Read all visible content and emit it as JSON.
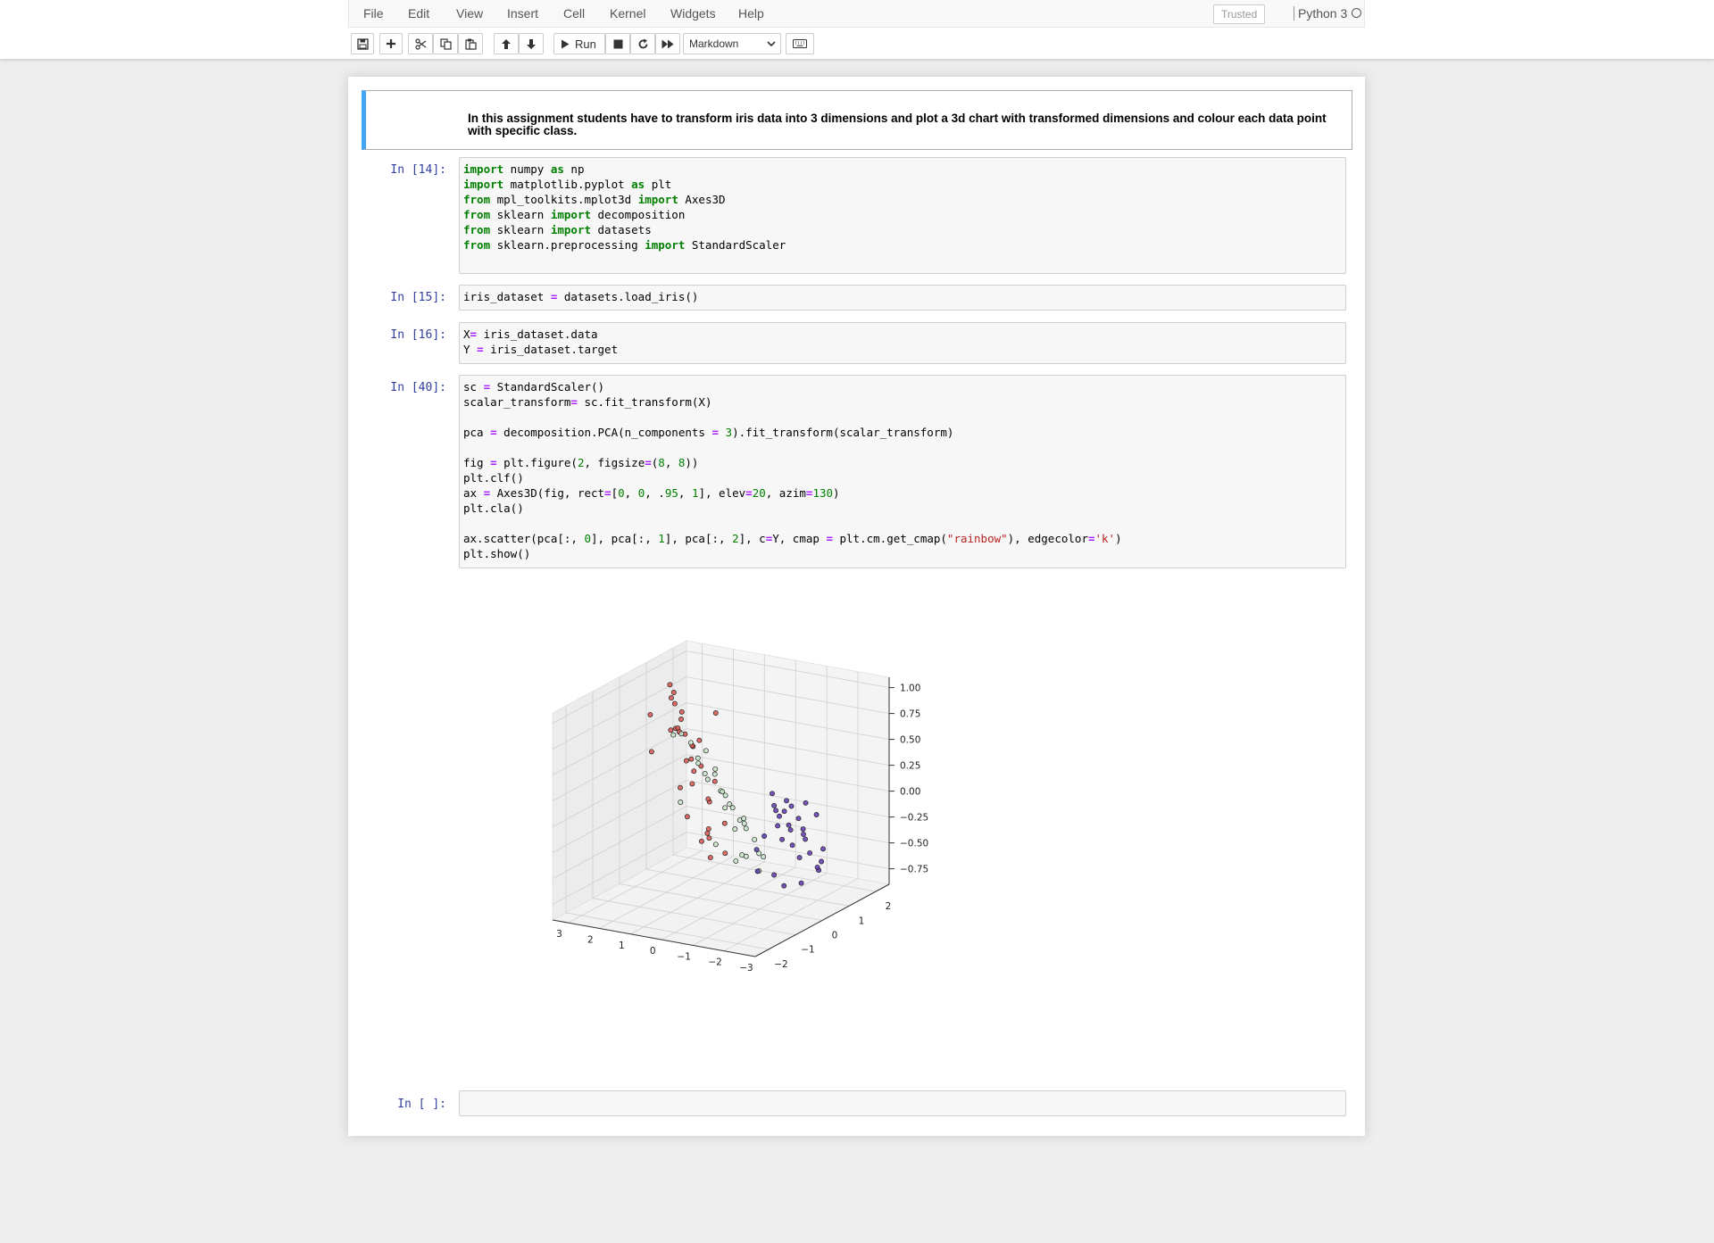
{
  "menu": {
    "items": [
      "File",
      "Edit",
      "View",
      "Insert",
      "Cell",
      "Kernel",
      "Widgets",
      "Help"
    ],
    "trusted": "Trusted",
    "kernel_name": "Python 3"
  },
  "toolbar": {
    "run_label": "Run",
    "cell_type": "Markdown",
    "icons": [
      "save-icon",
      "plus-icon",
      "cut-icon",
      "copy-icon",
      "paste-icon",
      "arrow-up-icon",
      "arrow-down-icon",
      "play-icon",
      "stop-icon",
      "restart-icon",
      "fast-forward-icon",
      "keyboard-icon"
    ]
  },
  "notebook": {
    "markdown_text": "In this assignment students have to transform iris data into 3 dimensions and plot a 3d chart with transformed dimensions and colour each data point with specific class.",
    "cells": [
      {
        "prompt": "In [14]:",
        "lines": [
          "import numpy as np",
          "import matplotlib.pyplot as plt",
          "from mpl_toolkits.mplot3d import Axes3D",
          "from sklearn import decomposition",
          "from sklearn import datasets",
          "from sklearn.preprocessing import StandardScaler",
          ""
        ]
      },
      {
        "prompt": "In [15]:",
        "lines": [
          "iris_dataset = datasets.load_iris()"
        ]
      },
      {
        "prompt": "In [16]:",
        "lines": [
          "X= iris_dataset.data",
          "Y = iris_dataset.target"
        ]
      },
      {
        "prompt": "In [40]:",
        "lines": [
          "sc = StandardScaler()",
          "scalar_transform= sc.fit_transform(X)",
          "",
          "pca = decomposition.PCA(n_components = 3).fit_transform(scalar_transform)",
          "",
          "fig = plt.figure(2, figsize=(8, 8))",
          "plt.clf()",
          "ax = Axes3D(fig, rect=[0, 0, .95, 1], elev=20, azim=130)",
          "plt.cla()",
          "",
          "ax.scatter(pca[:, 0], pca[:, 1], pca[:, 2], c=Y, cmap = plt.cm.get_cmap(\"rainbow\"), edgecolor='k')",
          "plt.show()"
        ]
      },
      {
        "prompt": "In [ ]:",
        "lines": [
          ""
        ]
      }
    ]
  },
  "chart_data": {
    "type": "scatter",
    "title": "",
    "x_ticks": [
      "3",
      "2",
      "1",
      "0",
      "−1",
      "−2",
      "−3"
    ],
    "y_ticks": [
      "2",
      "1",
      "0",
      "−1",
      "−2"
    ],
    "z_ticks": [
      "1.00",
      "0.75",
      "0.50",
      "0.25",
      "0.00",
      "−0.25",
      "−0.50",
      "−0.75"
    ],
    "xlim": [
      -3,
      3.5
    ],
    "ylim": [
      -2.5,
      2.5
    ],
    "zlim": [
      -0.9,
      1.1
    ],
    "grid": true,
    "view": {
      "elev": 20,
      "azim": 130
    },
    "series": [
      {
        "color": "#d9534f",
        "points": [
          [
            3.1,
            1.8,
            -0.2
          ],
          [
            2.9,
            1.6,
            0.5
          ],
          [
            2.7,
            1.0,
            0.8
          ],
          [
            2.6,
            1.4,
            0.4
          ],
          [
            2.4,
            0.6,
            1.0
          ],
          [
            2.3,
            1.1,
            0.2
          ],
          [
            2.2,
            0.4,
            0.6
          ],
          [
            2.1,
            0.9,
            -0.3
          ],
          [
            2.0,
            1.6,
            -0.6
          ],
          [
            1.9,
            0.2,
            0.9
          ],
          [
            1.8,
            0.7,
            0.3
          ],
          [
            1.8,
            1.3,
            -0.5
          ],
          [
            1.7,
            0.0,
            0.7
          ],
          [
            1.6,
            0.5,
            0.1
          ],
          [
            1.5,
            1.0,
            -0.4
          ],
          [
            1.5,
            -0.3,
            1.1
          ],
          [
            1.4,
            0.3,
            0.5
          ],
          [
            1.3,
            0.8,
            -0.1
          ],
          [
            1.2,
            -0.5,
            0.8
          ],
          [
            1.2,
            0.1,
            0.3
          ],
          [
            1.1,
            0.6,
            -0.6
          ],
          [
            1.0,
            -0.2,
            0.6
          ],
          [
            1.0,
            0.4,
            0.0
          ],
          [
            0.9,
            -0.7,
            1.0
          ],
          [
            0.9,
            0.9,
            -0.3
          ],
          [
            0.8,
            -0.1,
            0.4
          ],
          [
            0.7,
            0.3,
            0.2
          ],
          [
            0.6,
            -0.4,
            0.7
          ],
          [
            3.3,
            2.0,
            0.3
          ],
          [
            2.5,
            1.9,
            -0.7
          ],
          [
            2.0,
            -0.6,
            0.9
          ],
          [
            1.7,
            -0.9,
            0.6
          ],
          [
            1.4,
            1.5,
            -0.7
          ],
          [
            0.5,
            0.1,
            0.9
          ]
        ]
      },
      {
        "color": "#c8e6c9",
        "points": [
          [
            0.9,
            0.2,
            0.5
          ],
          [
            0.7,
            -0.6,
            0.7
          ],
          [
            0.6,
            0.4,
            0.1
          ],
          [
            0.5,
            -0.2,
            0.3
          ],
          [
            0.4,
            0.7,
            -0.3
          ],
          [
            0.3,
            -0.8,
            0.6
          ],
          [
            0.2,
            0.1,
            0.0
          ],
          [
            0.1,
            -0.4,
            0.4
          ],
          [
            0.0,
            0.5,
            -0.5
          ],
          [
            -0.1,
            -1.0,
            0.5
          ],
          [
            -0.2,
            -0.2,
            0.1
          ],
          [
            -0.3,
            0.3,
            -0.2
          ],
          [
            -0.4,
            -0.7,
            0.3
          ],
          [
            -0.5,
            0.0,
            -0.1
          ],
          [
            -0.6,
            -1.2,
            0.6
          ],
          [
            -0.7,
            -0.4,
            0.0
          ],
          [
            -0.8,
            0.2,
            -0.4
          ],
          [
            -0.9,
            -0.9,
            0.2
          ],
          [
            -1.0,
            -0.2,
            -0.2
          ],
          [
            1.1,
            0.8,
            -0.5
          ],
          [
            0.8,
            1.2,
            -0.7
          ],
          [
            0.3,
            1.0,
            -0.6
          ],
          [
            -0.2,
            0.9,
            -0.7
          ],
          [
            0.4,
            -1.3,
            0.9
          ],
          [
            -1.1,
            -1.4,
            0.4
          ],
          [
            1.0,
            -0.9,
            0.8
          ],
          [
            -0.4,
            -1.6,
            0.7
          ],
          [
            0.2,
            0.8,
            -0.2
          ],
          [
            -0.6,
            0.6,
            -0.5
          ],
          [
            0.6,
            -1.1,
            0.2
          ]
        ]
      },
      {
        "color": "#5e35b1",
        "points": [
          [
            -1.2,
            0.6,
            -0.3
          ],
          [
            -1.4,
            0.2,
            -0.1
          ],
          [
            -1.5,
            0.9,
            -0.5
          ],
          [
            -1.6,
            -0.1,
            0.1
          ],
          [
            -1.7,
            0.4,
            -0.3
          ],
          [
            -1.8,
            -0.4,
            0.2
          ],
          [
            -1.9,
            0.1,
            -0.1
          ],
          [
            -2.0,
            0.7,
            -0.4
          ],
          [
            -2.1,
            -0.2,
            0.0
          ],
          [
            -2.2,
            0.3,
            -0.2
          ],
          [
            -2.3,
            -0.6,
            0.2
          ],
          [
            -2.4,
            0.0,
            -0.1
          ],
          [
            -2.5,
            -0.3,
            0.1
          ],
          [
            -2.6,
            0.5,
            -0.3
          ],
          [
            -2.7,
            -0.8,
            0.3
          ],
          [
            -1.3,
            1.2,
            -0.8
          ],
          [
            -1.6,
            1.5,
            -0.7
          ],
          [
            -1.9,
            1.1,
            -0.6
          ],
          [
            -2.2,
            0.9,
            -0.5
          ],
          [
            -2.8,
            -1.1,
            0.4
          ],
          [
            -1.1,
            -0.2,
            -0.5
          ],
          [
            -1.5,
            -0.7,
            -0.2
          ],
          [
            -2.0,
            -1.0,
            0.0
          ],
          [
            -2.4,
            -0.9,
            0.2
          ],
          [
            -2.9,
            -0.5,
            0.3
          ],
          [
            -1.0,
            0.9,
            -0.8
          ],
          [
            -1.7,
            0.8,
            -0.2
          ],
          [
            -2.3,
            0.6,
            0.0
          ],
          [
            -2.6,
            -1.4,
            0.5
          ],
          [
            -1.2,
            0.3,
            -0.6
          ]
        ]
      }
    ]
  }
}
